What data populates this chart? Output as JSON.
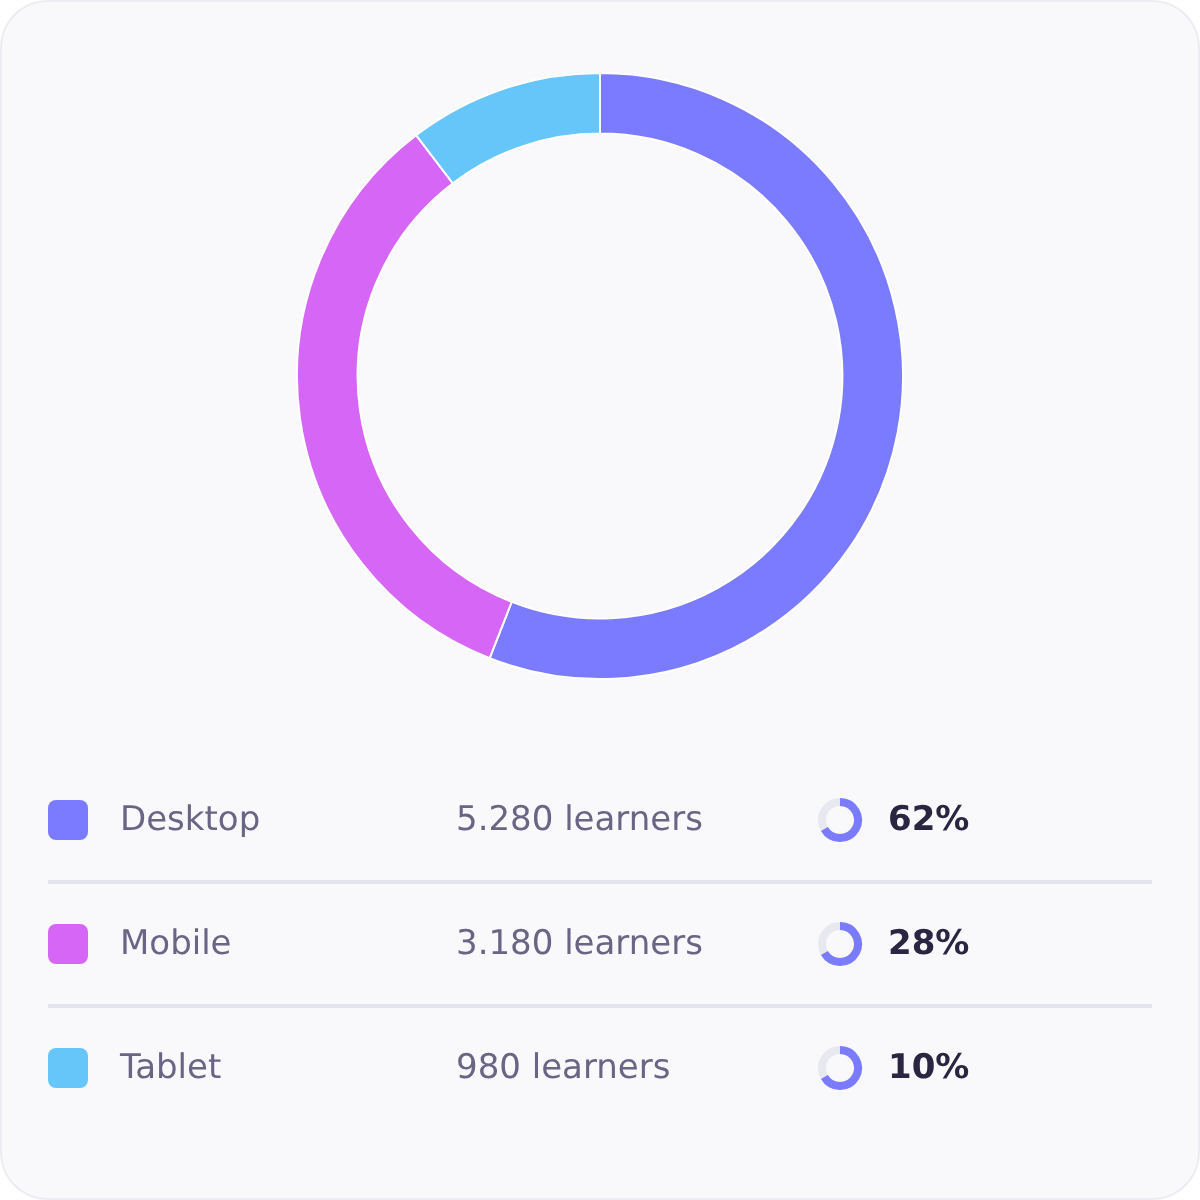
{
  "chart_data": {
    "type": "donut",
    "legend": "bottom",
    "categories": [
      "Desktop",
      "Mobile",
      "Tablet"
    ],
    "values": [
      5280,
      3180,
      980
    ],
    "colors": [
      "#7b7bff",
      "#d666f6",
      "#66c5f9"
    ],
    "value_labels": [
      "5.280 learners",
      "3.180 learners",
      "980 learners"
    ],
    "annotations": [
      "62%",
      "28%",
      "10%"
    ]
  }
}
